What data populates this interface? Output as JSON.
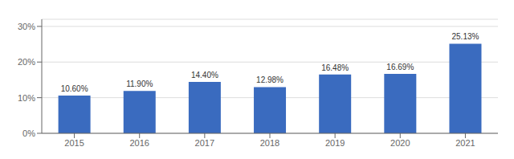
{
  "chart_data": {
    "type": "bar",
    "categories": [
      "2015",
      "2016",
      "2017",
      "2018",
      "2019",
      "2020",
      "2021"
    ],
    "values": [
      10.6,
      11.9,
      14.4,
      12.98,
      16.48,
      16.69,
      25.13
    ],
    "value_labels": [
      "10.60%",
      "11.90%",
      "14.40%",
      "12.98%",
      "16.48%",
      "16.69%",
      "25.13%"
    ],
    "data_labels": true,
    "color": "#3A6BBF",
    "ylim": [
      0,
      32
    ],
    "yticks": [
      {
        "value": 0,
        "label": "0%"
      },
      {
        "value": 10,
        "label": "10%"
      },
      {
        "value": 20,
        "label": "20%"
      },
      {
        "value": 30,
        "label": "30%"
      }
    ],
    "grid": true
  }
}
